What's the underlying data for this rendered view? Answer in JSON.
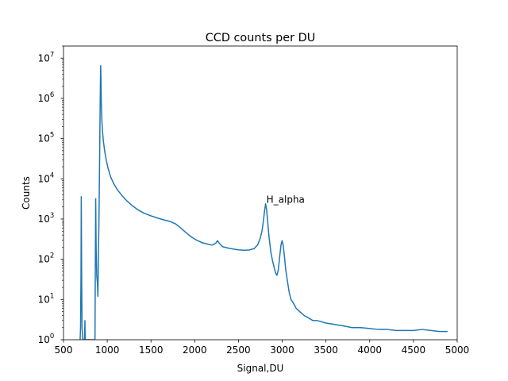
{
  "chart_data": {
    "type": "line",
    "title": "CCD counts per DU",
    "xlabel": "Signal,DU",
    "ylabel": "Counts",
    "xlim": [
      500,
      5000
    ],
    "ylim": [
      1,
      20000000
    ],
    "yscale": "log",
    "grid": false,
    "xticks": [
      500,
      1000,
      1500,
      2000,
      2500,
      3000,
      3500,
      4000,
      4500,
      5000
    ],
    "xtick_labels": [
      "500",
      "1000",
      "1500",
      "2000",
      "2500",
      "3000",
      "3500",
      "4000",
      "4500",
      "5000"
    ],
    "yticks": [
      1,
      10,
      100,
      1000,
      10000,
      100000,
      1000000,
      10000000
    ],
    "ytick_bases": [
      "10",
      "10",
      "10",
      "10",
      "10",
      "10",
      "10",
      "10"
    ],
    "ytick_exps": [
      "0",
      "1",
      "2",
      "3",
      "4",
      "5",
      "6",
      "7"
    ],
    "annotations": [
      {
        "text": "H_alpha",
        "x": 2810,
        "y": 2400
      }
    ],
    "series": [
      {
        "color": "#1f77b4",
        "points": [
          [
            690,
            1
          ],
          [
            695,
            2
          ],
          [
            700,
            40
          ],
          [
            703,
            3600
          ],
          [
            707,
            50
          ],
          [
            712,
            2
          ],
          [
            720,
            1
          ],
          [
            740,
            1
          ],
          [
            745,
            3
          ],
          [
            748,
            1
          ],
          [
            760,
            1
          ],
          [
            800,
            1
          ],
          [
            850,
            1
          ],
          [
            860,
            1
          ],
          [
            863,
            30
          ],
          [
            868,
            3200
          ],
          [
            873,
            200
          ],
          [
            880,
            40
          ],
          [
            888,
            25
          ],
          [
            893,
            12
          ],
          [
            898,
            80
          ],
          [
            905,
            800
          ],
          [
            912,
            20000
          ],
          [
            918,
            400000
          ],
          [
            922,
            2500000
          ],
          [
            925,
            6500000
          ],
          [
            928,
            3000000
          ],
          [
            932,
            800000
          ],
          [
            938,
            300000
          ],
          [
            945,
            160000
          ],
          [
            955,
            90000
          ],
          [
            970,
            50000
          ],
          [
            990,
            28000
          ],
          [
            1010,
            18000
          ],
          [
            1040,
            11000
          ],
          [
            1080,
            7200
          ],
          [
            1120,
            5200
          ],
          [
            1170,
            3800
          ],
          [
            1220,
            2900
          ],
          [
            1280,
            2200
          ],
          [
            1350,
            1700
          ],
          [
            1420,
            1400
          ],
          [
            1500,
            1200
          ],
          [
            1580,
            1050
          ],
          [
            1650,
            950
          ],
          [
            1720,
            870
          ],
          [
            1780,
            760
          ],
          [
            1840,
            600
          ],
          [
            1900,
            460
          ],
          [
            1960,
            360
          ],
          [
            2020,
            300
          ],
          [
            2080,
            260
          ],
          [
            2140,
            240
          ],
          [
            2200,
            225
          ],
          [
            2240,
            250
          ],
          [
            2260,
            290
          ],
          [
            2280,
            250
          ],
          [
            2320,
            205
          ],
          [
            2380,
            190
          ],
          [
            2440,
            180
          ],
          [
            2500,
            172
          ],
          [
            2560,
            168
          ],
          [
            2620,
            170
          ],
          [
            2680,
            185
          ],
          [
            2720,
            230
          ],
          [
            2750,
            340
          ],
          [
            2770,
            520
          ],
          [
            2785,
            900
          ],
          [
            2798,
            1600
          ],
          [
            2810,
            2400
          ],
          [
            2822,
            1700
          ],
          [
            2835,
            800
          ],
          [
            2850,
            350
          ],
          [
            2870,
            150
          ],
          [
            2890,
            90
          ],
          [
            2910,
            60
          ],
          [
            2925,
            45
          ],
          [
            2940,
            40
          ],
          [
            2955,
            55
          ],
          [
            2970,
            110
          ],
          [
            2985,
            220
          ],
          [
            2998,
            290
          ],
          [
            3010,
            230
          ],
          [
            3025,
            120
          ],
          [
            3040,
            55
          ],
          [
            3060,
            28
          ],
          [
            3080,
            15
          ],
          [
            3100,
            10
          ],
          [
            3130,
            8
          ],
          [
            3160,
            6
          ],
          [
            3200,
            5
          ],
          [
            3250,
            4
          ],
          [
            3300,
            3.5
          ],
          [
            3350,
            3
          ],
          [
            3400,
            3
          ],
          [
            3500,
            2.6
          ],
          [
            3600,
            2.4
          ],
          [
            3700,
            2.2
          ],
          [
            3800,
            2
          ],
          [
            3900,
            2
          ],
          [
            4000,
            1.9
          ],
          [
            4100,
            1.8
          ],
          [
            4200,
            1.8
          ],
          [
            4300,
            1.7
          ],
          [
            4400,
            1.7
          ],
          [
            4500,
            1.7
          ],
          [
            4600,
            1.8
          ],
          [
            4700,
            1.7
          ],
          [
            4800,
            1.6
          ],
          [
            4890,
            1.6
          ]
        ]
      }
    ]
  }
}
